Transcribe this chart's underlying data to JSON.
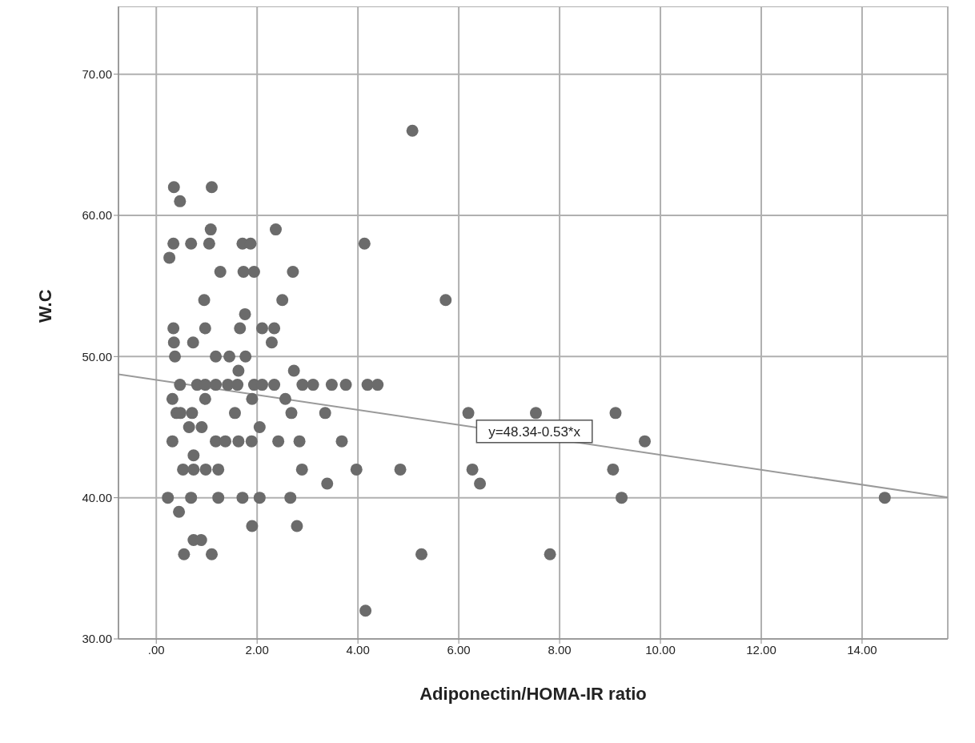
{
  "chart_data": {
    "type": "scatter",
    "xlabel": "Adiponectin/HOMA-IR ratio",
    "ylabel": "W.C",
    "xlim": [
      -0.75,
      15.7
    ],
    "ylim": [
      30,
      74.8
    ],
    "xticks": [
      {
        "value": 0,
        "label": ".00"
      },
      {
        "value": 2,
        "label": "2.00"
      },
      {
        "value": 4,
        "label": "4.00"
      },
      {
        "value": 6,
        "label": "6.00"
      },
      {
        "value": 8,
        "label": "8.00"
      },
      {
        "value": 10,
        "label": "10.00"
      },
      {
        "value": 12,
        "label": "12.00"
      },
      {
        "value": 14,
        "label": "14.00"
      }
    ],
    "yticks": [
      {
        "value": 30,
        "label": "30.00"
      },
      {
        "value": 40,
        "label": "40.00"
      },
      {
        "value": 50,
        "label": "50.00"
      },
      {
        "value": 60,
        "label": "60.00"
      },
      {
        "value": 70,
        "label": "70.00"
      }
    ],
    "grid": true,
    "marker": "circle",
    "annotations": [
      {
        "text": "y=48.34-0.53*x",
        "x": 7.5,
        "y": 44.7
      }
    ],
    "series": [
      {
        "color": "#6b6b6b",
        "x": [
          0.35,
          1.1,
          0.47,
          1.08,
          2.37,
          0.34,
          0.69,
          1.05,
          1.71,
          1.87,
          0.26,
          1.27,
          1.73,
          1.94,
          2.71,
          0.95,
          2.5,
          1.76,
          0.34,
          0.97,
          1.66,
          2.1,
          2.34,
          0.35,
          0.73,
          2.29,
          0.37,
          1.18,
          1.45,
          1.77,
          1.63,
          2.73,
          0.47,
          0.81,
          0.97,
          1.18,
          1.42,
          1.61,
          1.94,
          2.1,
          2.34,
          2.9,
          3.11,
          0.32,
          0.97,
          1.9,
          2.56,
          0.4,
          0.48,
          0.71,
          1.56,
          2.68,
          0.65,
          0.9,
          2.05,
          0.32,
          1.18,
          1.37,
          1.63,
          1.89,
          2.42,
          2.84,
          0.74,
          0.53,
          0.74,
          0.98,
          1.23,
          2.89,
          0.23,
          0.69,
          1.23,
          1.71,
          2.05,
          2.66,
          0.45,
          1.9,
          2.79,
          0.74,
          0.89,
          0.55,
          1.1,
          3.48,
          3.76,
          4.19,
          4.39,
          3.35,
          3.68,
          3.97,
          4.84,
          3.39,
          5.26,
          4.15,
          4.13,
          5.74,
          5.08,
          6.19,
          6.27,
          6.42,
          7.53,
          7.81,
          9.11,
          9.06,
          9.23,
          9.69,
          14.45
        ],
        "values": [
          62,
          62,
          61,
          59,
          59,
          58,
          58,
          58,
          58,
          58,
          57,
          56,
          56,
          56,
          56,
          54,
          54,
          53,
          52,
          52,
          52,
          52,
          52,
          51,
          51,
          51,
          50,
          50,
          50,
          50,
          49,
          49,
          48,
          48,
          48,
          48,
          48,
          48,
          48,
          48,
          48,
          48,
          48,
          47,
          47,
          47,
          47,
          46,
          46,
          46,
          46,
          46,
          45,
          45,
          45,
          44,
          44,
          44,
          44,
          44,
          44,
          44,
          43,
          42,
          42,
          42,
          42,
          42,
          40,
          40,
          40,
          40,
          40,
          40,
          39,
          38,
          38,
          37,
          37,
          36,
          36,
          48,
          48,
          48,
          48,
          46,
          44,
          42,
          42,
          41,
          36,
          32,
          58,
          54,
          66,
          46,
          42,
          41,
          46,
          36,
          46,
          42,
          40,
          44,
          40
        ]
      },
      {
        "type": "line",
        "color": "#9a9a9a",
        "marker": "none",
        "x": [
          -0.75,
          15.7
        ],
        "values": [
          48.74,
          40.02
        ]
      }
    ]
  }
}
